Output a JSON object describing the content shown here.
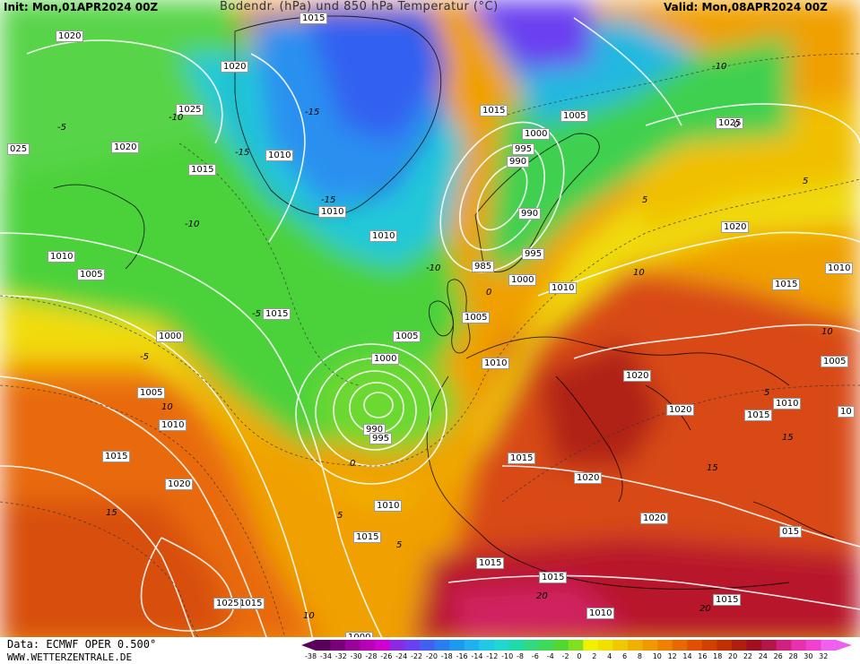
{
  "header": {
    "init": "Init: Mon,01APR2024 00Z",
    "title": "Bodendr. (hPa) und 850 hPa Temperatur (°C)",
    "valid": "Valid: Mon,08APR2024 00Z"
  },
  "footer": {
    "source": "Data: ECMWF OPER 0.500°",
    "website": "WWW.WETTERZENTRALE.DE"
  },
  "colorbar": {
    "ticks": [
      "-38",
      "-34",
      "-32",
      "-30",
      "-28",
      "-26",
      "-24",
      "-22",
      "-20",
      "-18",
      "-16",
      "-14",
      "-12",
      "-10",
      "-8",
      "-6",
      "-4",
      "-2",
      "0",
      "2",
      "4",
      "6",
      "8",
      "10",
      "12",
      "14",
      "16",
      "18",
      "20",
      "22",
      "24",
      "26",
      "28",
      "30",
      "32"
    ],
    "colors": [
      "#5a005a",
      "#7a007a",
      "#9a009a",
      "#b800b8",
      "#d000d0",
      "#8a2be2",
      "#6a40f0",
      "#4060f0",
      "#2a7cf0",
      "#2098f0",
      "#20b0f0",
      "#20c8e8",
      "#20d8d0",
      "#20d8a8",
      "#30d880",
      "#40d858",
      "#50d830",
      "#80e020",
      "#f0f000",
      "#f0e000",
      "#f0c800",
      "#f0b000",
      "#f09800",
      "#f08000",
      "#e86800",
      "#e05000",
      "#d04000",
      "#c03000",
      "#b02010",
      "#a01020",
      "#b01848",
      "#d02080",
      "#e830b0",
      "#f040d0",
      "#f060f0"
    ]
  },
  "pressure_labels": [
    {
      "text": "1015"
    },
    {
      "text": "1020"
    },
    {
      "text": "1020"
    },
    {
      "text": "1025"
    },
    {
      "text": "1020"
    },
    {
      "text": "025"
    },
    {
      "text": "1015"
    },
    {
      "text": "1010"
    },
    {
      "text": "1015"
    },
    {
      "text": "1005"
    },
    {
      "text": "1025"
    },
    {
      "text": "1000"
    },
    {
      "text": "995"
    },
    {
      "text": "990"
    },
    {
      "text": "1010"
    },
    {
      "text": "1010"
    },
    {
      "text": "990"
    },
    {
      "text": "1010"
    },
    {
      "text": "1005"
    },
    {
      "text": "985"
    },
    {
      "text": "995"
    },
    {
      "text": "1000"
    },
    {
      "text": "1010"
    },
    {
      "text": "1020"
    },
    {
      "text": "1015"
    },
    {
      "text": "1010"
    },
    {
      "text": "1015"
    },
    {
      "text": "1005"
    },
    {
      "text": "1005"
    },
    {
      "text": "1005"
    },
    {
      "text": "1000"
    },
    {
      "text": "1000"
    },
    {
      "text": "1010"
    },
    {
      "text": "1020"
    },
    {
      "text": "1005"
    },
    {
      "text": "1010"
    },
    {
      "text": "1015"
    },
    {
      "text": "10"
    },
    {
      "text": "1010"
    },
    {
      "text": "1015"
    },
    {
      "text": "1020"
    },
    {
      "text": "1020"
    },
    {
      "text": "1015"
    },
    {
      "text": "990"
    },
    {
      "text": "995"
    },
    {
      "text": "1015"
    },
    {
      "text": "1020"
    },
    {
      "text": "1020"
    },
    {
      "text": "1010"
    },
    {
      "text": "1015"
    },
    {
      "text": "015"
    },
    {
      "text": "1015"
    },
    {
      "text": "1015"
    },
    {
      "text": "1015"
    },
    {
      "text": "1025"
    },
    {
      "text": "1010"
    },
    {
      "text": "1000"
    }
  ],
  "temperature_labels": [
    {
      "text": "-10"
    },
    {
      "text": "-15"
    },
    {
      "text": "-5"
    },
    {
      "text": "-15"
    },
    {
      "text": "-10"
    },
    {
      "text": "-15"
    },
    {
      "text": "-10"
    },
    {
      "text": "-10"
    },
    {
      "text": "0"
    },
    {
      "text": "-5"
    },
    {
      "text": "5"
    },
    {
      "text": "5"
    },
    {
      "text": "10"
    },
    {
      "text": "15"
    },
    {
      "text": "5"
    },
    {
      "text": "10"
    },
    {
      "text": "15"
    },
    {
      "text": "20"
    },
    {
      "text": "20"
    },
    {
      "text": "10"
    },
    {
      "text": "5"
    },
    {
      "text": "0"
    },
    {
      "text": "-5"
    },
    {
      "text": "5"
    },
    {
      "text": "0"
    },
    {
      "text": "15"
    },
    {
      "text": "10"
    }
  ]
}
